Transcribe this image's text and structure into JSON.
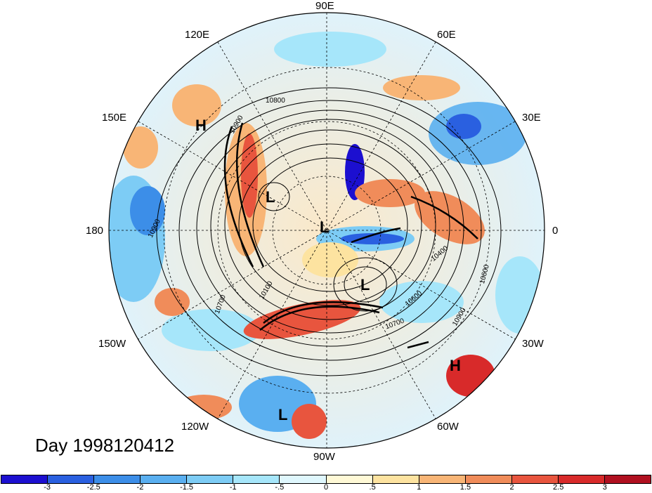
{
  "map": {
    "projection": "polar stereographic (northern hemisphere)",
    "lon_labels": [
      "90E",
      "60E",
      "30E",
      "0",
      "30W",
      "60W",
      "90W",
      "120W",
      "150W",
      "180",
      "150E",
      "120E"
    ],
    "pressure_centers": [
      {
        "label": "H",
        "color": "#000000"
      },
      {
        "label": "L",
        "color": "#000000"
      },
      {
        "label": "L",
        "color": "#000000"
      },
      {
        "label": "L",
        "color": "#000000"
      },
      {
        "label": "H",
        "color": "#000000"
      },
      {
        "label": "L",
        "color": "#000000"
      }
    ],
    "contour_labels": [
      "10800",
      "10900",
      "10900",
      "10700",
      "10100",
      "10600",
      "10700",
      "10900",
      "10400",
      "10600"
    ]
  },
  "date_label": "Day 1998120412",
  "colorbar": {
    "colors": [
      "#1c0fd0",
      "#2a60e0",
      "#3c8ee8",
      "#5aaff0",
      "#7dccf5",
      "#a6e6fa",
      "#dff7fd",
      "#fff9d6",
      "#fde3a0",
      "#f8b576",
      "#f08c5a",
      "#e8553e",
      "#d82a2a",
      "#b01020"
    ],
    "ticks": [
      "-3",
      "-2.5",
      "-2",
      "-1.5",
      "-1",
      "-.5",
      "0",
      ".5",
      "1",
      "1.5",
      "2",
      "2.5",
      "3"
    ]
  }
}
